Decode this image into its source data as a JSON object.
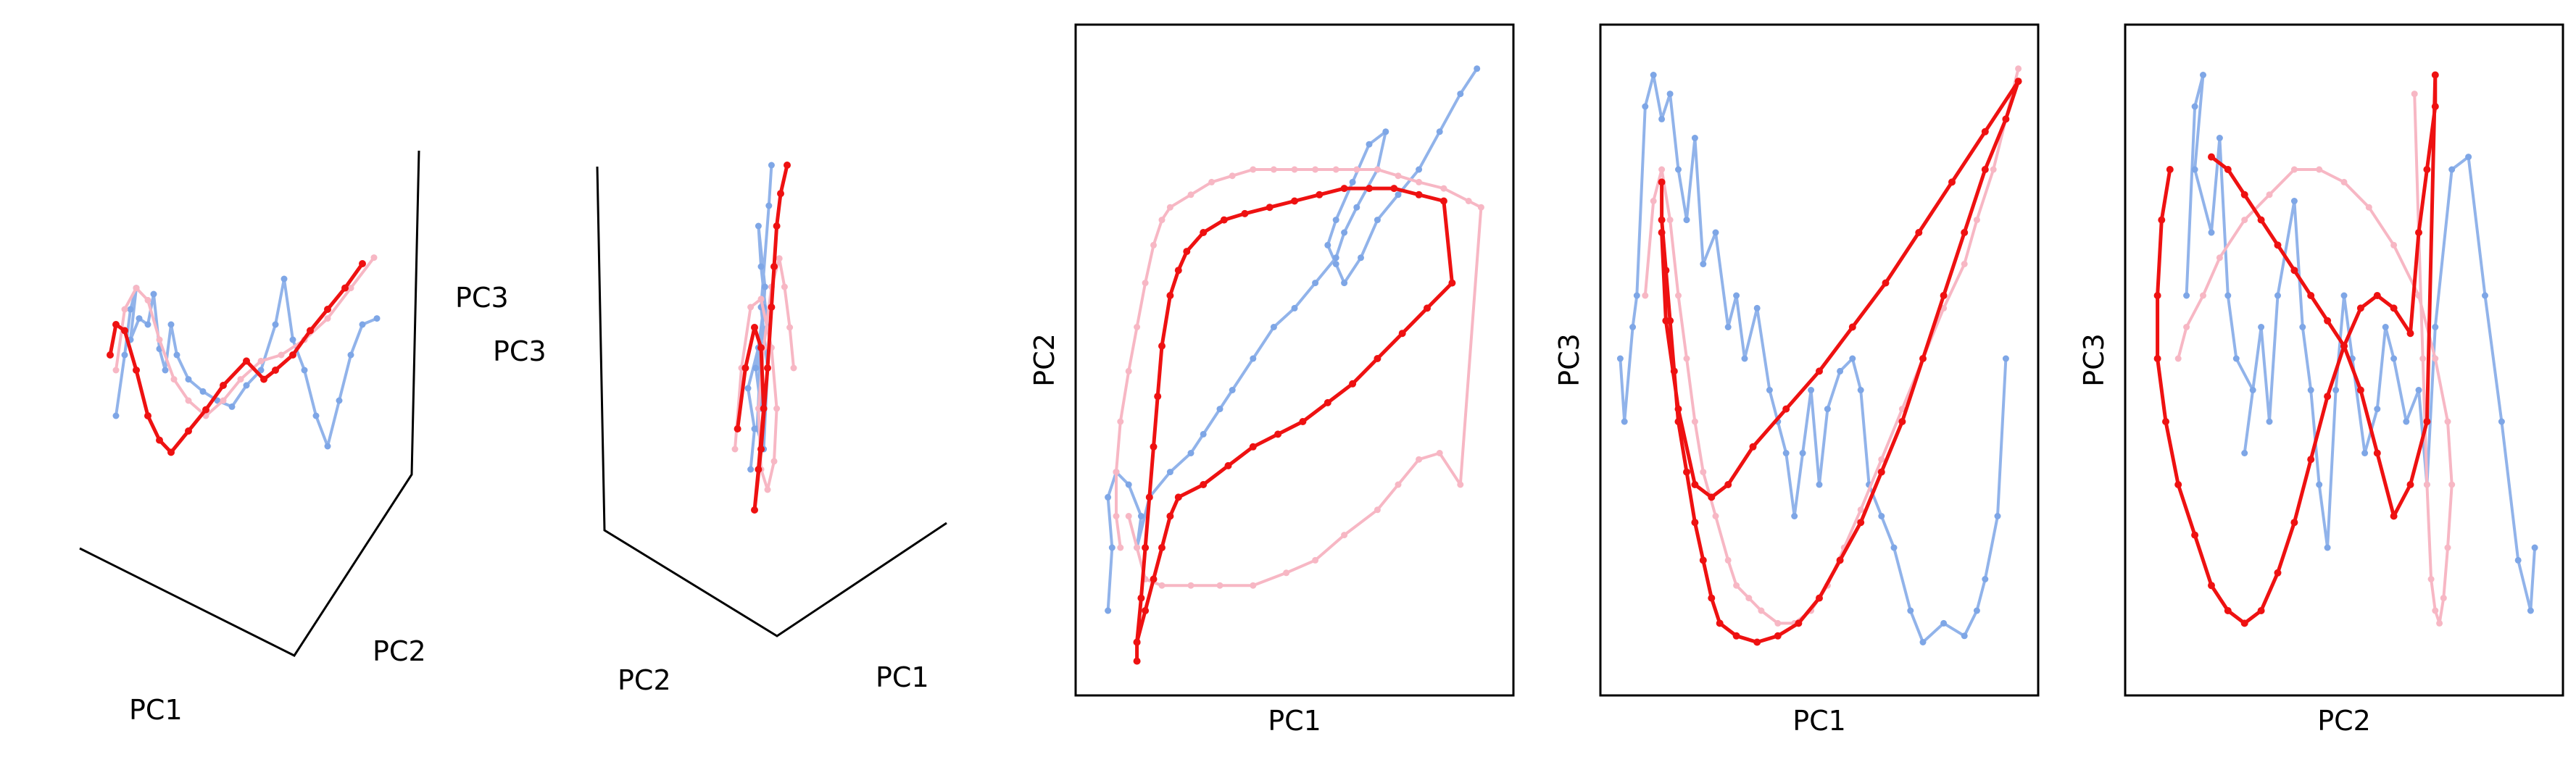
{
  "colors": {
    "light_blue": "#7ea6e6",
    "pink": "#f7b7c4",
    "red": "#ee1111",
    "axes": "#000000"
  },
  "chart_data": [
    {
      "type": "line",
      "projection": "3d",
      "axis_labels": {
        "pc1": "PC1",
        "pc2": "PC2",
        "pc3": "PC3"
      },
      "series": [
        {
          "color": "#7ea6e6",
          "x": [
            0.05,
            0.08,
            0.1,
            0.12,
            0.1,
            0.13,
            0.16,
            0.18,
            0.2,
            0.22,
            0.24,
            0.26,
            0.3,
            0.35,
            0.4,
            0.45,
            0.5,
            0.55,
            0.6,
            0.63,
            0.66,
            0.7,
            0.74,
            0.78,
            0.82,
            0.86,
            0.9,
            0.95
          ],
          "y": [
            0.3,
            0.5,
            0.65,
            0.72,
            0.55,
            0.62,
            0.6,
            0.7,
            0.52,
            0.45,
            0.6,
            0.5,
            0.42,
            0.38,
            0.35,
            0.33,
            0.4,
            0.45,
            0.6,
            0.75,
            0.55,
            0.45,
            0.3,
            0.2,
            0.35,
            0.5,
            0.6,
            0.62
          ]
        },
        {
          "color": "#f7b7c4",
          "x": [
            0.05,
            0.08,
            0.12,
            0.16,
            0.2,
            0.25,
            0.3,
            0.36,
            0.42,
            0.48,
            0.55,
            0.62,
            0.7,
            0.78,
            0.86,
            0.94
          ],
          "y": [
            0.45,
            0.65,
            0.72,
            0.68,
            0.55,
            0.42,
            0.35,
            0.3,
            0.35,
            0.42,
            0.48,
            0.5,
            0.55,
            0.62,
            0.72,
            0.82
          ]
        },
        {
          "color": "#ee1111",
          "x": [
            0.03,
            0.05,
            0.08,
            0.12,
            0.16,
            0.2,
            0.24,
            0.3,
            0.36,
            0.42,
            0.5,
            0.56,
            0.6,
            0.66,
            0.72,
            0.78,
            0.84,
            0.9
          ],
          "y": [
            0.5,
            0.6,
            0.58,
            0.45,
            0.3,
            0.22,
            0.18,
            0.25,
            0.32,
            0.4,
            0.48,
            0.42,
            0.45,
            0.5,
            0.58,
            0.65,
            0.72,
            0.8
          ]
        }
      ]
    },
    {
      "type": "line",
      "projection": "3d",
      "axis_labels": {
        "pc1": "PC1",
        "pc2": "PC2",
        "pc3": "PC3"
      },
      "series": [
        {
          "color": "#7ea6e6",
          "x": [
            0.42,
            0.45,
            0.4,
            0.48,
            0.5,
            0.46,
            0.52,
            0.55,
            0.5,
            0.48,
            0.53,
            0.5,
            0.47,
            0.52,
            0.55,
            0.5,
            0.56,
            0.58
          ],
          "y": [
            0.2,
            0.3,
            0.4,
            0.5,
            0.35,
            0.45,
            0.6,
            0.55,
            0.7,
            0.8,
            0.65,
            0.5,
            0.3,
            0.25,
            0.45,
            0.6,
            0.85,
            0.95
          ]
        },
        {
          "color": "#f7b7c4",
          "x": [
            0.3,
            0.35,
            0.42,
            0.5,
            0.58,
            0.62,
            0.6,
            0.55,
            0.5,
            0.48,
            0.52,
            0.58,
            0.64,
            0.68,
            0.72,
            0.75
          ],
          "y": [
            0.25,
            0.45,
            0.6,
            0.62,
            0.5,
            0.35,
            0.22,
            0.15,
            0.2,
            0.35,
            0.5,
            0.65,
            0.72,
            0.65,
            0.55,
            0.45
          ]
        },
        {
          "color": "#ee1111",
          "x": [
            0.32,
            0.38,
            0.45,
            0.5,
            0.52,
            0.48,
            0.45,
            0.5,
            0.55,
            0.58,
            0.6,
            0.62,
            0.65,
            0.7
          ],
          "y": [
            0.3,
            0.45,
            0.55,
            0.5,
            0.35,
            0.2,
            0.1,
            0.25,
            0.45,
            0.6,
            0.7,
            0.8,
            0.88,
            0.95
          ]
        }
      ]
    },
    {
      "type": "line",
      "xlabel": "PC1",
      "ylabel": "PC2",
      "xlim": [
        0,
        1
      ],
      "ylim": [
        0,
        1
      ],
      "series": [
        {
          "color": "#7ea6e6",
          "x": [
            0.05,
            0.06,
            0.05,
            0.07,
            0.1,
            0.13,
            0.12,
            0.15,
            0.2,
            0.25,
            0.28,
            0.32,
            0.35,
            0.4,
            0.45,
            0.5,
            0.55,
            0.6,
            0.62,
            0.65,
            0.7,
            0.72,
            0.68,
            0.64,
            0.6,
            0.58,
            0.6,
            0.62,
            0.66,
            0.7,
            0.75,
            0.8,
            0.85,
            0.9,
            0.94
          ],
          "y": [
            0.1,
            0.2,
            0.28,
            0.32,
            0.3,
            0.25,
            0.2,
            0.28,
            0.32,
            0.35,
            0.38,
            0.42,
            0.45,
            0.5,
            0.55,
            0.58,
            0.62,
            0.66,
            0.7,
            0.74,
            0.8,
            0.86,
            0.84,
            0.78,
            0.72,
            0.68,
            0.65,
            0.62,
            0.66,
            0.72,
            0.76,
            0.8,
            0.86,
            0.92,
            0.96
          ]
        },
        {
          "color": "#f7b7c4",
          "x": [
            0.08,
            0.07,
            0.07,
            0.08,
            0.1,
            0.12,
            0.14,
            0.16,
            0.18,
            0.2,
            0.25,
            0.3,
            0.35,
            0.4,
            0.45,
            0.5,
            0.55,
            0.6,
            0.65,
            0.7,
            0.75,
            0.8,
            0.86,
            0.92,
            0.95,
            0.9,
            0.85,
            0.8,
            0.75,
            0.7,
            0.62,
            0.55,
            0.48,
            0.4,
            0.32,
            0.25,
            0.18,
            0.14,
            0.12,
            0.1
          ],
          "y": [
            0.2,
            0.25,
            0.32,
            0.4,
            0.48,
            0.55,
            0.62,
            0.68,
            0.72,
            0.74,
            0.76,
            0.78,
            0.79,
            0.8,
            0.8,
            0.8,
            0.8,
            0.8,
            0.8,
            0.8,
            0.79,
            0.78,
            0.77,
            0.75,
            0.74,
            0.3,
            0.35,
            0.34,
            0.3,
            0.26,
            0.22,
            0.18,
            0.16,
            0.14,
            0.14,
            0.14,
            0.14,
            0.15,
            0.2,
            0.25
          ]
        },
        {
          "color": "#ee1111",
          "x": [
            0.12,
            0.12,
            0.13,
            0.14,
            0.15,
            0.16,
            0.17,
            0.18,
            0.2,
            0.22,
            0.24,
            0.28,
            0.33,
            0.38,
            0.44,
            0.5,
            0.56,
            0.62,
            0.68,
            0.74,
            0.8,
            0.86,
            0.88,
            0.82,
            0.76,
            0.7,
            0.64,
            0.58,
            0.52,
            0.46,
            0.4,
            0.34,
            0.28,
            0.22,
            0.2,
            0.18,
            0.16,
            0.14,
            0.12
          ],
          "y": [
            0.02,
            0.05,
            0.12,
            0.2,
            0.28,
            0.36,
            0.44,
            0.52,
            0.6,
            0.64,
            0.67,
            0.7,
            0.72,
            0.73,
            0.74,
            0.75,
            0.76,
            0.77,
            0.77,
            0.77,
            0.76,
            0.75,
            0.62,
            0.58,
            0.54,
            0.5,
            0.46,
            0.43,
            0.4,
            0.38,
            0.36,
            0.33,
            0.3,
            0.28,
            0.25,
            0.2,
            0.15,
            0.1,
            0.05
          ]
        }
      ]
    },
    {
      "type": "line",
      "xlabel": "PC1",
      "ylabel": "PC3",
      "xlim": [
        0,
        1
      ],
      "ylim": [
        0,
        1
      ],
      "series": [
        {
          "color": "#7ea6e6",
          "x": [
            0.02,
            0.03,
            0.05,
            0.06,
            0.08,
            0.1,
            0.12,
            0.14,
            0.16,
            0.18,
            0.2,
            0.22,
            0.25,
            0.28,
            0.3,
            0.32,
            0.35,
            0.38,
            0.4,
            0.42,
            0.44,
            0.46,
            0.48,
            0.5,
            0.52,
            0.55,
            0.58,
            0.6,
            0.62,
            0.65,
            0.68,
            0.72,
            0.75,
            0.8,
            0.85,
            0.88,
            0.9,
            0.93,
            0.95
          ],
          "y": [
            0.5,
            0.4,
            0.55,
            0.6,
            0.9,
            0.95,
            0.88,
            0.92,
            0.8,
            0.72,
            0.85,
            0.65,
            0.7,
            0.55,
            0.6,
            0.5,
            0.58,
            0.45,
            0.4,
            0.35,
            0.25,
            0.35,
            0.45,
            0.3,
            0.42,
            0.48,
            0.5,
            0.45,
            0.3,
            0.25,
            0.2,
            0.1,
            0.05,
            0.08,
            0.06,
            0.1,
            0.15,
            0.25,
            0.5
          ]
        },
        {
          "color": "#f7b7c4",
          "x": [
            0.08,
            0.1,
            0.12,
            0.14,
            0.16,
            0.18,
            0.2,
            0.22,
            0.25,
            0.28,
            0.3,
            0.33,
            0.36,
            0.4,
            0.44,
            0.48,
            0.52,
            0.56,
            0.6,
            0.65,
            0.7,
            0.75,
            0.8,
            0.85,
            0.88,
            0.92,
            0.95,
            0.98
          ],
          "y": [
            0.6,
            0.75,
            0.8,
            0.72,
            0.6,
            0.5,
            0.4,
            0.32,
            0.25,
            0.18,
            0.14,
            0.12,
            0.1,
            0.08,
            0.08,
            0.1,
            0.14,
            0.2,
            0.26,
            0.34,
            0.42,
            0.5,
            0.58,
            0.65,
            0.72,
            0.8,
            0.88,
            0.96
          ]
        },
        {
          "color": "#ee1111",
          "x": [
            0.12,
            0.12,
            0.13,
            0.14,
            0.15,
            0.16,
            0.18,
            0.2,
            0.22,
            0.24,
            0.26,
            0.3,
            0.35,
            0.4,
            0.45,
            0.5,
            0.55,
            0.6,
            0.65,
            0.7,
            0.75,
            0.8,
            0.85,
            0.9,
            0.95,
            0.98,
            0.9,
            0.82,
            0.74,
            0.66,
            0.58,
            0.5,
            0.42,
            0.34,
            0.28,
            0.24,
            0.2,
            0.16,
            0.13,
            0.12
          ],
          "y": [
            0.78,
            0.72,
            0.64,
            0.56,
            0.48,
            0.4,
            0.32,
            0.24,
            0.18,
            0.12,
            0.08,
            0.06,
            0.05,
            0.06,
            0.08,
            0.12,
            0.18,
            0.24,
            0.32,
            0.4,
            0.5,
            0.6,
            0.7,
            0.8,
            0.88,
            0.94,
            0.86,
            0.78,
            0.7,
            0.62,
            0.55,
            0.48,
            0.42,
            0.36,
            0.3,
            0.28,
            0.3,
            0.42,
            0.56,
            0.7
          ]
        }
      ]
    },
    {
      "type": "line",
      "xlabel": "PC2",
      "ylabel": "PC3",
      "xlim": [
        0,
        1
      ],
      "ylim": [
        0,
        1
      ],
      "series": [
        {
          "color": "#7ea6e6",
          "x": [
            0.12,
            0.14,
            0.16,
            0.14,
            0.18,
            0.2,
            0.22,
            0.24,
            0.28,
            0.26,
            0.3,
            0.32,
            0.34,
            0.38,
            0.4,
            0.42,
            0.44,
            0.46,
            0.48,
            0.5,
            0.52,
            0.55,
            0.58,
            0.6,
            0.62,
            0.65,
            0.68,
            0.7,
            0.72,
            0.76,
            0.8,
            0.84,
            0.88,
            0.92,
            0.95,
            0.96
          ],
          "y": [
            0.6,
            0.9,
            0.95,
            0.8,
            0.7,
            0.85,
            0.6,
            0.5,
            0.45,
            0.35,
            0.55,
            0.4,
            0.6,
            0.75,
            0.55,
            0.45,
            0.3,
            0.2,
            0.45,
            0.6,
            0.5,
            0.35,
            0.42,
            0.55,
            0.5,
            0.4,
            0.45,
            0.3,
            0.55,
            0.8,
            0.82,
            0.6,
            0.4,
            0.18,
            0.1,
            0.2
          ]
        },
        {
          "color": "#f7b7c4",
          "x": [
            0.1,
            0.12,
            0.16,
            0.2,
            0.26,
            0.32,
            0.38,
            0.44,
            0.5,
            0.56,
            0.62,
            0.68,
            0.72,
            0.75,
            0.76,
            0.75,
            0.74,
            0.73,
            0.72,
            0.71,
            0.7,
            0.69,
            0.68,
            0.67
          ],
          "y": [
            0.5,
            0.55,
            0.6,
            0.66,
            0.72,
            0.76,
            0.8,
            0.8,
            0.78,
            0.74,
            0.68,
            0.6,
            0.5,
            0.4,
            0.3,
            0.2,
            0.12,
            0.08,
            0.1,
            0.15,
            0.3,
            0.5,
            0.7,
            0.92
          ]
        },
        {
          "color": "#ee1111",
          "x": [
            0.08,
            0.06,
            0.05,
            0.05,
            0.07,
            0.1,
            0.14,
            0.18,
            0.22,
            0.26,
            0.3,
            0.34,
            0.38,
            0.42,
            0.46,
            0.5,
            0.54,
            0.58,
            0.62,
            0.66,
            0.68,
            0.7,
            0.72,
            0.72,
            0.7,
            0.66,
            0.62,
            0.58,
            0.54,
            0.5,
            0.46,
            0.42,
            0.38,
            0.34,
            0.3,
            0.26,
            0.22,
            0.18
          ],
          "y": [
            0.8,
            0.72,
            0.6,
            0.5,
            0.4,
            0.3,
            0.22,
            0.14,
            0.1,
            0.08,
            0.1,
            0.16,
            0.24,
            0.34,
            0.44,
            0.52,
            0.58,
            0.6,
            0.58,
            0.54,
            0.7,
            0.8,
            0.9,
            0.95,
            0.4,
            0.3,
            0.25,
            0.35,
            0.45,
            0.52,
            0.56,
            0.6,
            0.64,
            0.68,
            0.72,
            0.76,
            0.8,
            0.82
          ]
        }
      ]
    }
  ]
}
